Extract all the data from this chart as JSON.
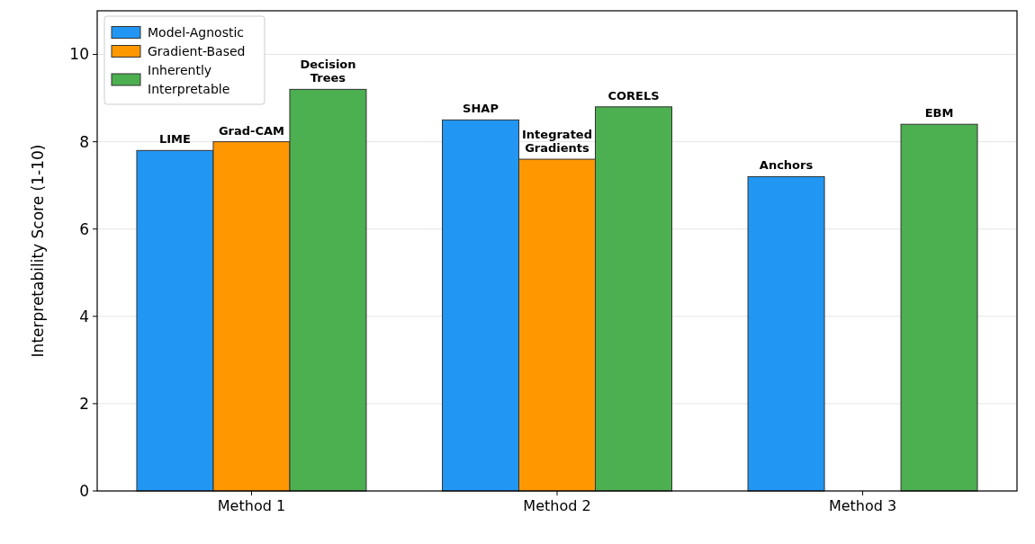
{
  "chart_data": {
    "type": "bar",
    "ylabel": "Interpretability Score (1-10)",
    "categories": [
      "Method 1",
      "Method 2",
      "Method 3"
    ],
    "series": [
      {
        "name": "Model-Agnostic",
        "color": "#2196f3",
        "values": [
          7.8,
          8.5,
          7.2
        ],
        "value_labels": [
          "LIME",
          "SHAP",
          "Anchors"
        ]
      },
      {
        "name": "Gradient-Based",
        "color": "#ff9800",
        "values": [
          8.0,
          7.6,
          null
        ],
        "value_labels": [
          "Grad-CAM",
          "Integrated\nGradients",
          null
        ]
      },
      {
        "name": "Inherently\nInterpretable",
        "color": "#4caf50",
        "values": [
          9.2,
          8.8,
          8.4
        ],
        "value_labels": [
          "Decision\nTrees",
          "CORELS",
          "EBM"
        ]
      }
    ],
    "ylim": [
      0,
      11
    ],
    "yticks": [
      0,
      2,
      4,
      6,
      8,
      10
    ],
    "grid": "y",
    "legend": "top left"
  }
}
